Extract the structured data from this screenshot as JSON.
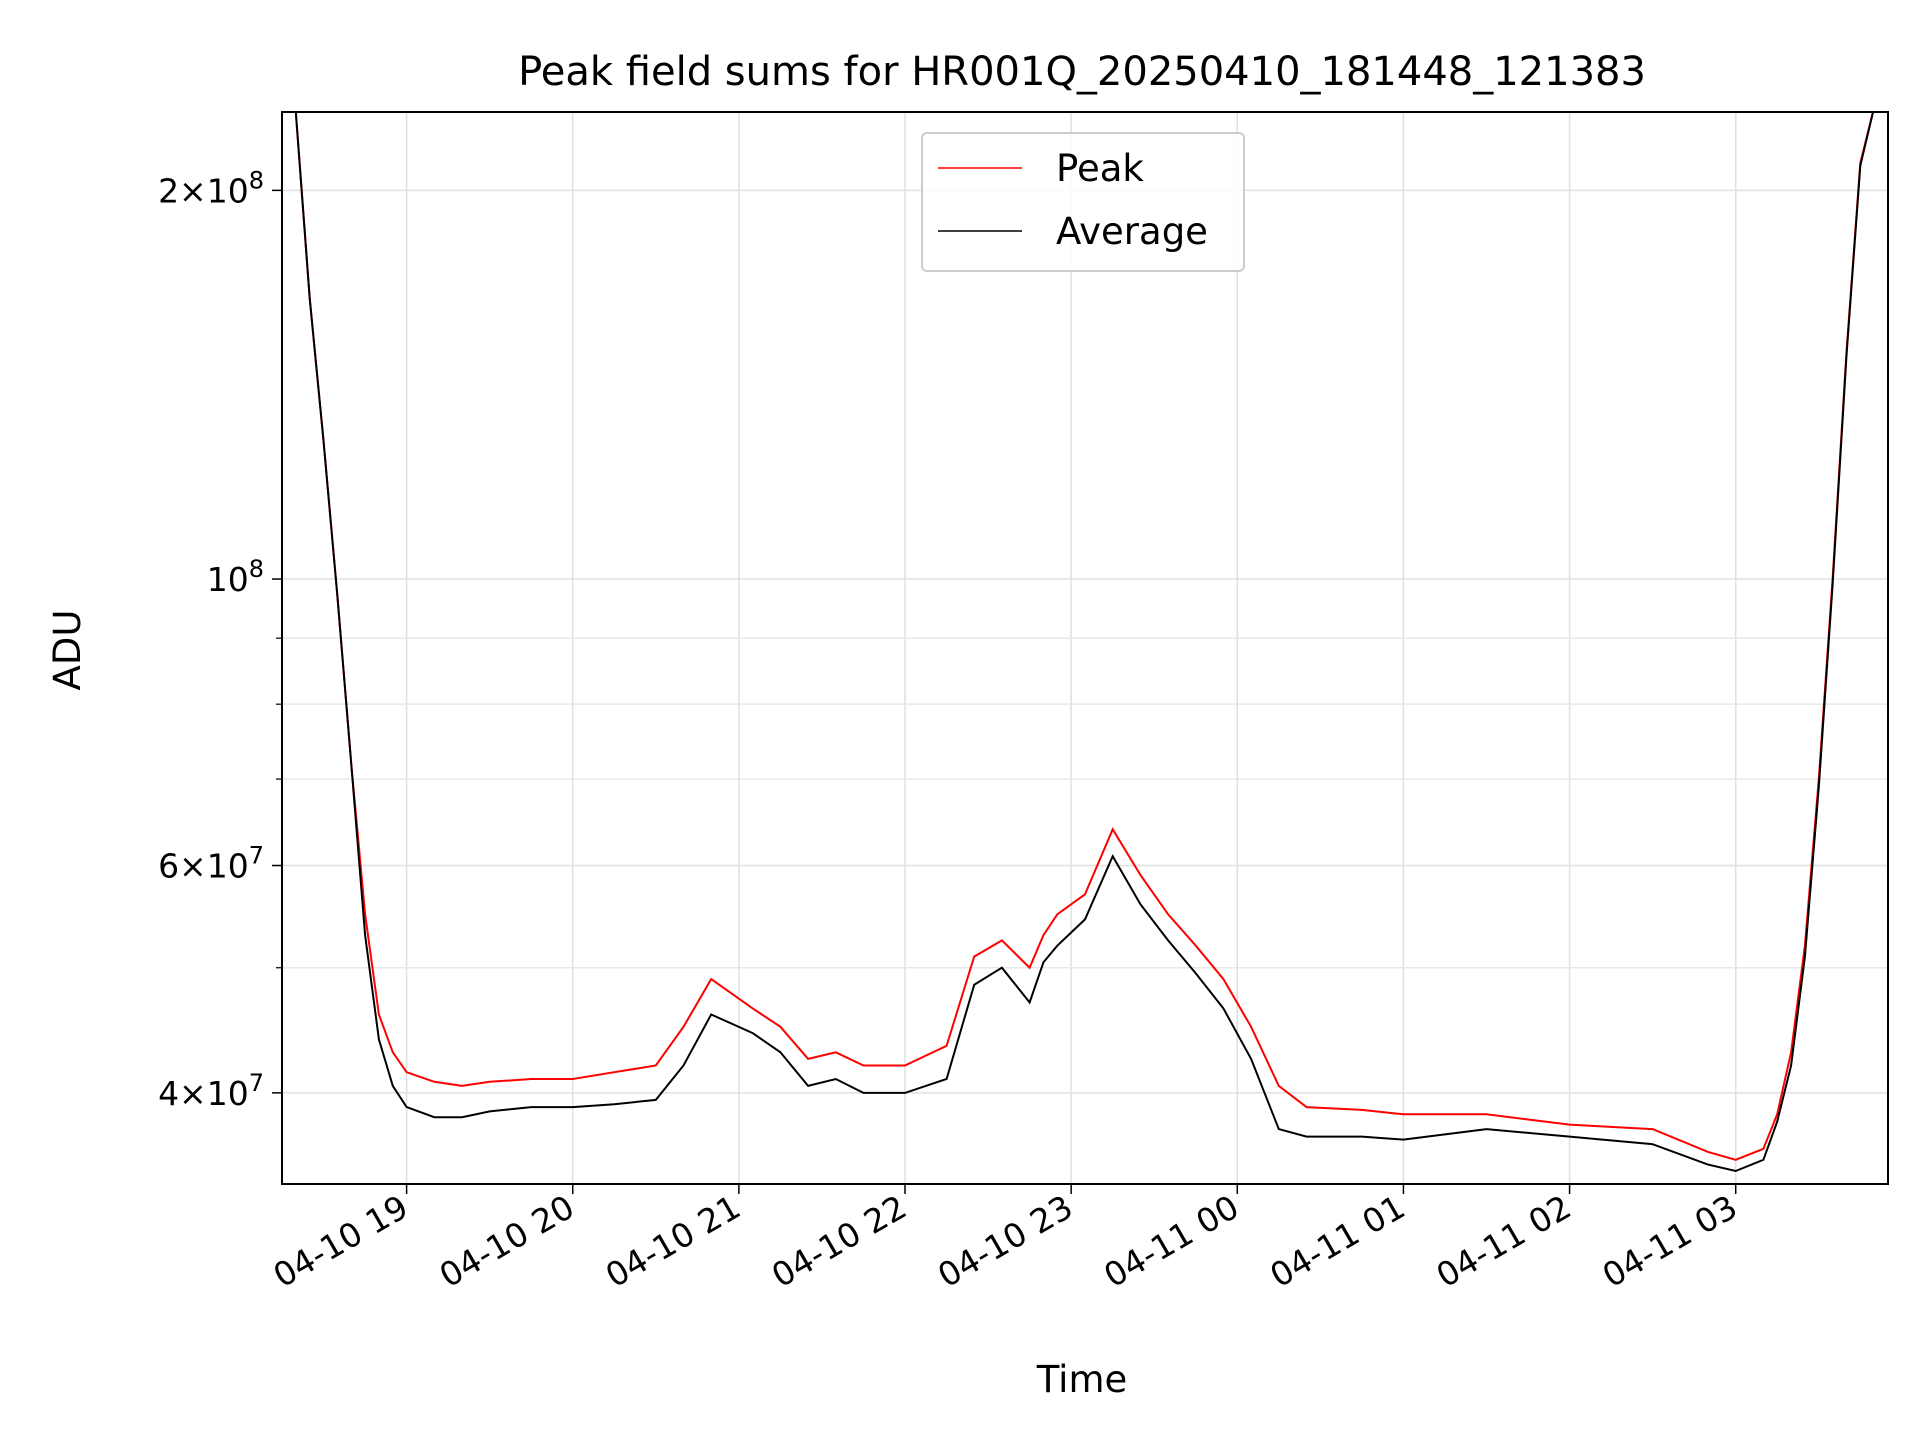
{
  "chart_data": {
    "type": "line",
    "title": "Peak field sums for HR001Q_20250410_181448_121383",
    "xlabel": "Time",
    "ylabel": "ADU",
    "yscale": "log",
    "grid": true,
    "legend_position": "top-center",
    "xlim": [
      "2025-04-10 18:15",
      "2025-04-11 03:55"
    ],
    "ylim": [
      34000000,
      230000000
    ],
    "x_tick_labels": [
      "04-10 19",
      "04-10 20",
      "04-10 21",
      "04-10 22",
      "04-10 23",
      "04-11 00",
      "04-11 01",
      "04-11 02",
      "04-11 03"
    ],
    "x_tick_values": [
      "2025-04-10 19:00",
      "2025-04-10 20:00",
      "2025-04-10 21:00",
      "2025-04-10 22:00",
      "2025-04-10 23:00",
      "2025-04-11 00:00",
      "2025-04-11 01:00",
      "2025-04-11 02:00",
      "2025-04-11 03:00"
    ],
    "y_major_ticks": [
      {
        "value": 40000000,
        "mantissa": "4",
        "exponent": "7"
      },
      {
        "value": 60000000,
        "mantissa": "6",
        "exponent": "7"
      },
      {
        "value": 100000000,
        "mantissa": "",
        "exponent": "8"
      },
      {
        "value": 200000000,
        "mantissa": "2",
        "exponent": "8"
      }
    ],
    "y_minor_ticks": [
      50000000,
      70000000,
      80000000,
      90000000
    ],
    "series": [
      {
        "name": "Peak",
        "color": "#ff0000",
        "x": [
          "2025-04-10 18:15",
          "2025-04-10 18:20",
          "2025-04-10 18:25",
          "2025-04-10 18:30",
          "2025-04-10 18:35",
          "2025-04-10 18:40",
          "2025-04-10 18:45",
          "2025-04-10 18:50",
          "2025-04-10 18:55",
          "2025-04-10 19:00",
          "2025-04-10 19:10",
          "2025-04-10 19:20",
          "2025-04-10 19:30",
          "2025-04-10 19:45",
          "2025-04-10 20:00",
          "2025-04-10 20:15",
          "2025-04-10 20:30",
          "2025-04-10 20:40",
          "2025-04-10 20:50",
          "2025-04-10 21:05",
          "2025-04-10 21:15",
          "2025-04-10 21:25",
          "2025-04-10 21:35",
          "2025-04-10 21:45",
          "2025-04-10 22:00",
          "2025-04-10 22:15",
          "2025-04-10 22:25",
          "2025-04-10 22:35",
          "2025-04-10 22:45",
          "2025-04-10 22:50",
          "2025-04-10 22:55",
          "2025-04-10 23:05",
          "2025-04-10 23:15",
          "2025-04-10 23:25",
          "2025-04-10 23:35",
          "2025-04-10 23:45",
          "2025-04-10 23:55",
          "2025-04-11 00:05",
          "2025-04-11 00:15",
          "2025-04-11 00:25",
          "2025-04-11 00:45",
          "2025-04-11 01:00",
          "2025-04-11 01:30",
          "2025-04-11 02:00",
          "2025-04-11 02:30",
          "2025-04-11 02:50",
          "2025-04-11 03:00",
          "2025-04-11 03:10",
          "2025-04-11 03:15",
          "2025-04-11 03:20",
          "2025-04-11 03:25",
          "2025-04-11 03:30",
          "2025-04-11 03:35",
          "2025-04-11 03:40",
          "2025-04-11 03:45",
          "2025-04-11 03:50",
          "2025-04-11 03:55"
        ],
        "values": [
          232000000,
          230000000,
          165000000,
          128000000,
          97000000,
          72000000,
          55000000,
          46000000,
          43000000,
          41500000,
          40800000,
          40500000,
          40800000,
          41000000,
          41000000,
          41500000,
          42000000,
          45000000,
          49000000,
          46500000,
          45000000,
          42500000,
          43000000,
          42000000,
          42000000,
          43500000,
          51000000,
          52500000,
          50000000,
          53000000,
          55000000,
          57000000,
          64000000,
          59000000,
          55000000,
          52000000,
          49000000,
          45000000,
          40500000,
          39000000,
          38800000,
          38500000,
          38500000,
          37800000,
          37500000,
          36000000,
          35500000,
          36200000,
          38500000,
          43000000,
          52000000,
          70000000,
          100000000,
          150000000,
          210000000,
          232000000,
          232000000
        ]
      },
      {
        "name": "Average",
        "color": "#000000",
        "x": [
          "2025-04-10 18:15",
          "2025-04-10 18:20",
          "2025-04-10 18:25",
          "2025-04-10 18:30",
          "2025-04-10 18:35",
          "2025-04-10 18:40",
          "2025-04-10 18:45",
          "2025-04-10 18:50",
          "2025-04-10 18:55",
          "2025-04-10 19:00",
          "2025-04-10 19:10",
          "2025-04-10 19:20",
          "2025-04-10 19:30",
          "2025-04-10 19:45",
          "2025-04-10 20:00",
          "2025-04-10 20:15",
          "2025-04-10 20:30",
          "2025-04-10 20:40",
          "2025-04-10 20:50",
          "2025-04-10 21:05",
          "2025-04-10 21:15",
          "2025-04-10 21:25",
          "2025-04-10 21:35",
          "2025-04-10 21:45",
          "2025-04-10 22:00",
          "2025-04-10 22:15",
          "2025-04-10 22:25",
          "2025-04-10 22:35",
          "2025-04-10 22:45",
          "2025-04-10 22:50",
          "2025-04-10 22:55",
          "2025-04-10 23:05",
          "2025-04-10 23:15",
          "2025-04-10 23:25",
          "2025-04-10 23:35",
          "2025-04-10 23:45",
          "2025-04-10 23:55",
          "2025-04-11 00:05",
          "2025-04-11 00:15",
          "2025-04-11 00:25",
          "2025-04-11 00:45",
          "2025-04-11 01:00",
          "2025-04-11 01:30",
          "2025-04-11 02:00",
          "2025-04-11 02:30",
          "2025-04-11 02:50",
          "2025-04-11 03:00",
          "2025-04-11 03:10",
          "2025-04-11 03:15",
          "2025-04-11 03:20",
          "2025-04-11 03:25",
          "2025-04-11 03:30",
          "2025-04-11 03:35",
          "2025-04-11 03:40",
          "2025-04-11 03:45",
          "2025-04-11 03:50",
          "2025-04-11 03:55"
        ],
        "values": [
          232000000,
          230000000,
          165000000,
          128000000,
          97000000,
          72000000,
          53000000,
          44000000,
          40500000,
          39000000,
          38300000,
          38300000,
          38700000,
          39000000,
          39000000,
          39200000,
          39500000,
          42000000,
          46000000,
          44500000,
          43000000,
          40500000,
          41000000,
          40000000,
          40000000,
          41000000,
          48500000,
          50000000,
          47000000,
          50500000,
          52000000,
          54500000,
          61000000,
          56000000,
          52500000,
          49500000,
          46500000,
          42500000,
          37500000,
          37000000,
          37000000,
          36800000,
          37500000,
          37000000,
          36500000,
          35200000,
          34800000,
          35500000,
          38000000,
          42000000,
          51000000,
          69000000,
          99000000,
          149000000,
          209000000,
          232000000,
          232000000
        ]
      }
    ]
  }
}
